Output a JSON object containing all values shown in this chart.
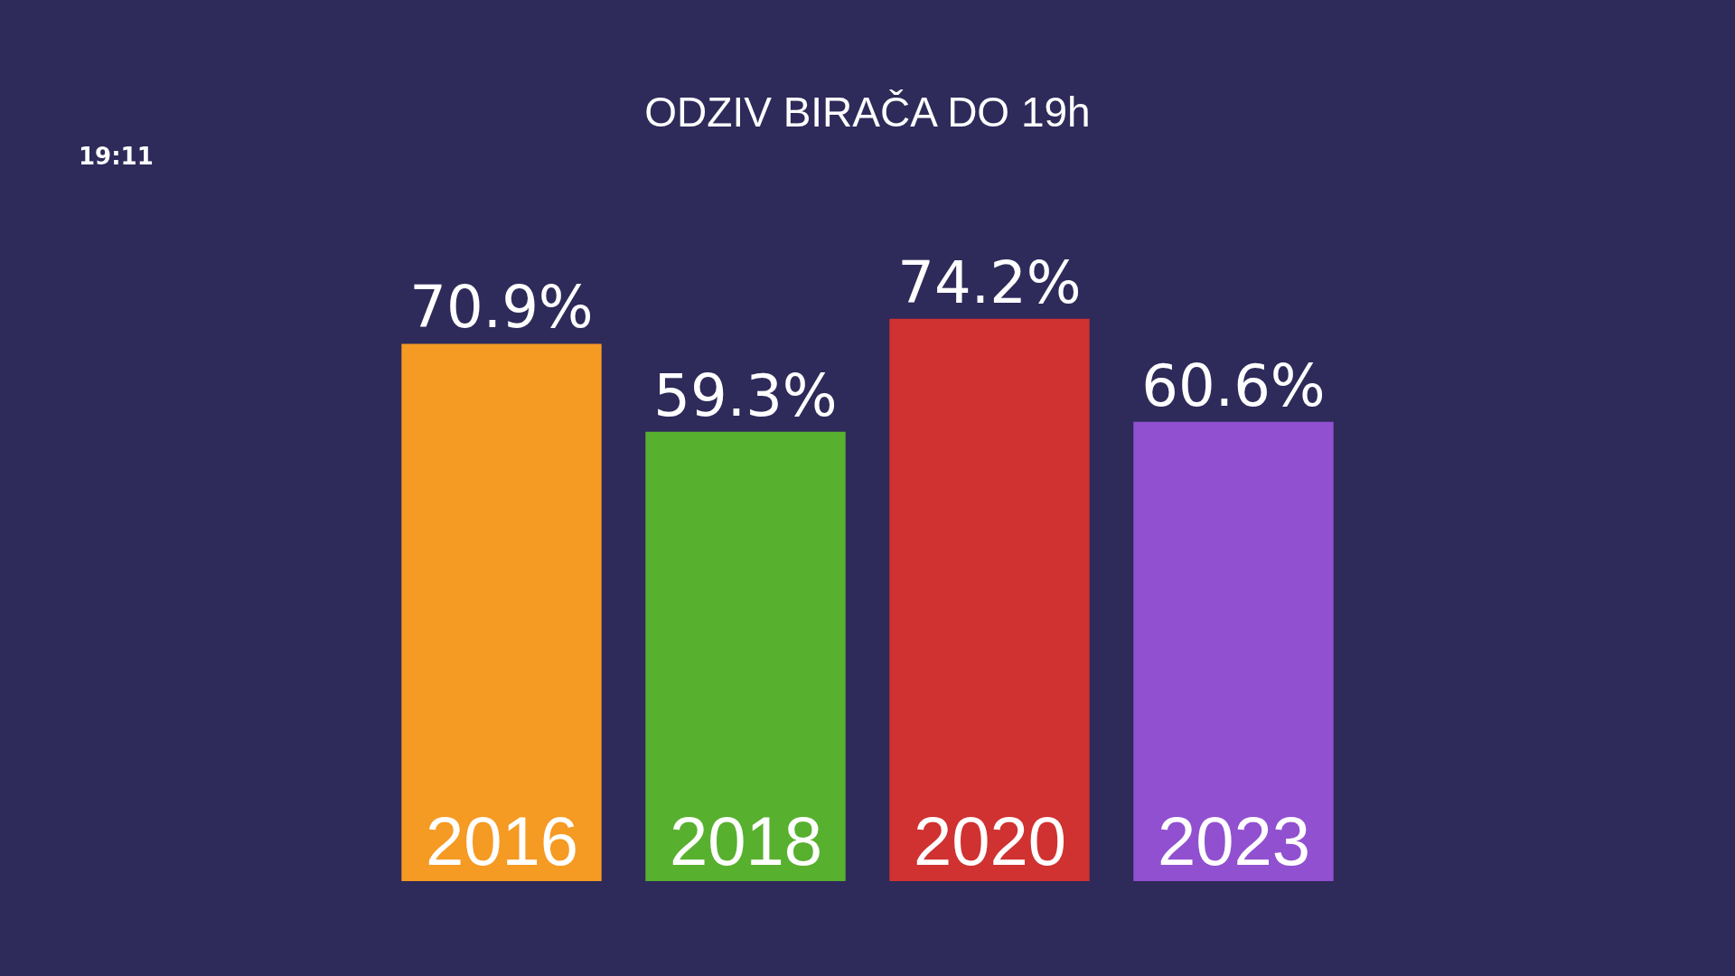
{
  "chart_data": {
    "type": "bar",
    "title": "ODZIV BIRAČA DO 19h",
    "categories": [
      "2016",
      "2018",
      "2020",
      "2023"
    ],
    "values": [
      70.9,
      59.3,
      74.2,
      60.6
    ],
    "value_labels": [
      "70.9%",
      "59.3%",
      "74.2%",
      "60.6%"
    ],
    "colors": [
      "#f59a22",
      "#58b02f",
      "#d03131",
      "#9150d0"
    ],
    "annotations": [
      "19:11"
    ],
    "grid": false,
    "legend": false
  }
}
